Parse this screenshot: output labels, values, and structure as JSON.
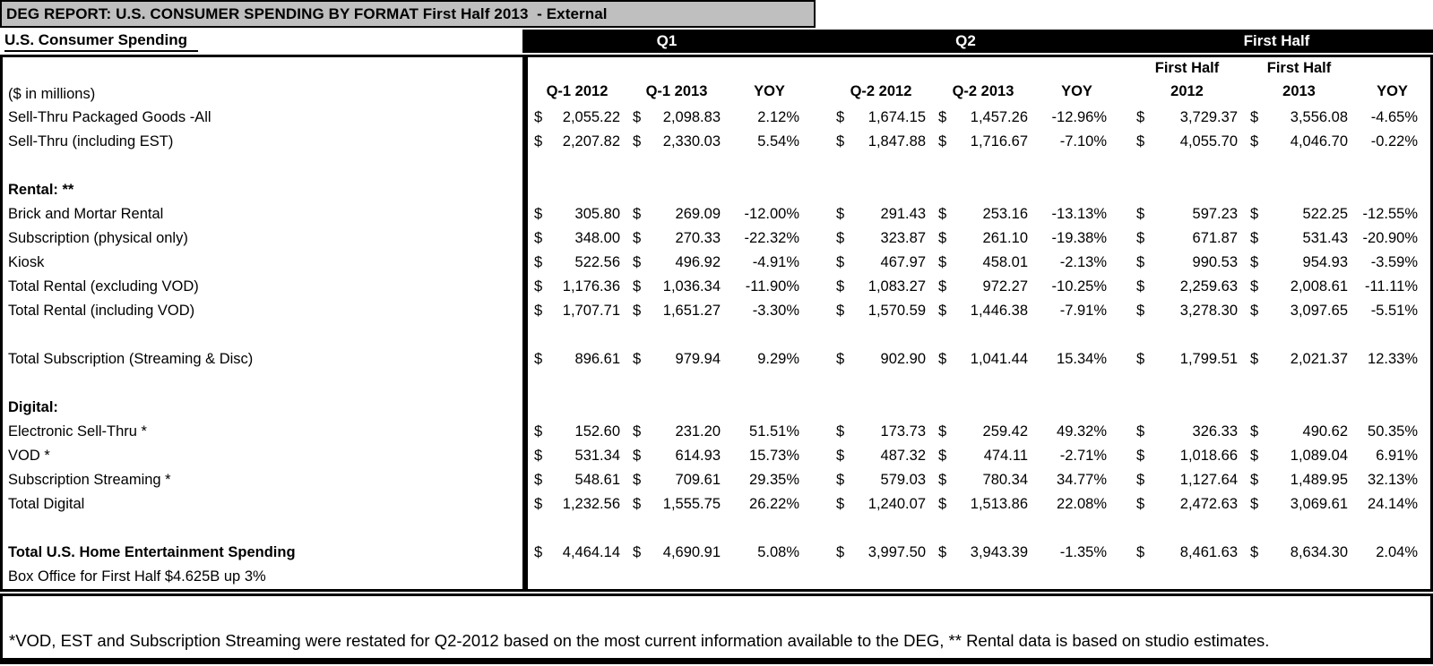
{
  "title_bar": "DEG REPORT: U.S. CONSUMER SPENDING BY FORMAT First Half 2013  - External",
  "colors": {
    "title_bar_bg": "#bfbfbf",
    "header_band_bg": "#000000",
    "text": "#000000"
  },
  "header": {
    "left_label": "U.S. Consumer Spending",
    "groups": [
      "Q1",
      "Q2",
      "First Half"
    ],
    "millions_label": "($ in millions)",
    "columns": [
      {
        "line1": "",
        "line2": "Q-1 2012"
      },
      {
        "line1": "",
        "line2": "Q-1 2013"
      },
      {
        "line1": "",
        "line2": "YOY"
      },
      {
        "line1": "",
        "line2": "Q-2 2012"
      },
      {
        "line1": "",
        "line2": "Q-2 2013"
      },
      {
        "line1": "",
        "line2": "YOY"
      },
      {
        "line1": "First Half",
        "line2": "2012"
      },
      {
        "line1": "First Half",
        "line2": "2013"
      },
      {
        "line1": "",
        "line2": "YOY"
      }
    ]
  },
  "table": {
    "rows": [
      {
        "label": "Sell-Thru Packaged Goods -All",
        "bold": false,
        "values": [
          "$ 2,055.22",
          "$ 2,098.83",
          "2.12%",
          "$ 1,674.15",
          "$ 1,457.26",
          "-12.96%",
          "$ 3,729.37",
          "$ 3,556.08",
          "-4.65%"
        ]
      },
      {
        "label": "Sell-Thru (including EST)",
        "bold": false,
        "values": [
          "$ 2,207.82",
          "$ 2,330.03",
          "5.54%",
          "$ 1,847.88",
          "$ 1,716.67",
          "-7.10%",
          "$ 4,055.70",
          "$ 4,046.70",
          "-0.22%"
        ]
      },
      {
        "label": "",
        "bold": false,
        "values": null
      },
      {
        "label": "Rental: **",
        "bold": true,
        "values": null
      },
      {
        "label": "Brick and Mortar Rental",
        "bold": false,
        "values": [
          "$ 305.80",
          "$ 269.09",
          "-12.00%",
          "$ 291.43",
          "$ 253.16",
          "-13.13%",
          "$ 597.23",
          "$ 522.25",
          "-12.55%"
        ]
      },
      {
        "label": "Subscription (physical only)",
        "bold": false,
        "values": [
          "$ 348.00",
          "$ 270.33",
          "-22.32%",
          "$ 323.87",
          "$ 261.10",
          "-19.38%",
          "$ 671.87",
          "$ 531.43",
          "-20.90%"
        ]
      },
      {
        "label": "Kiosk",
        "bold": false,
        "values": [
          "$ 522.56",
          "$ 496.92",
          "-4.91%",
          "$ 467.97",
          "$ 458.01",
          "-2.13%",
          "$ 990.53",
          "$ 954.93",
          "-3.59%"
        ]
      },
      {
        "label": "Total Rental (excluding VOD)",
        "bold": false,
        "values": [
          "$ 1,176.36",
          "$ 1,036.34",
          "-11.90%",
          "$ 1,083.27",
          "$ 972.27",
          "-10.25%",
          "$ 2,259.63",
          "$ 2,008.61",
          "-11.11%"
        ]
      },
      {
        "label": "Total Rental (including VOD)",
        "bold": false,
        "values": [
          "$ 1,707.71",
          "$ 1,651.27",
          "-3.30%",
          "$ 1,570.59",
          "$ 1,446.38",
          "-7.91%",
          "$ 3,278.30",
          "$ 3,097.65",
          "-5.51%"
        ]
      },
      {
        "label": "",
        "bold": false,
        "values": null
      },
      {
        "label": "Total Subscription (Streaming & Disc)",
        "bold": false,
        "values": [
          "$ 896.61",
          "$ 979.94",
          "9.29%",
          "$ 902.90",
          "$ 1,041.44",
          "15.34%",
          "$ 1,799.51",
          "$ 2,021.37",
          "12.33%"
        ]
      },
      {
        "label": "",
        "bold": false,
        "values": null
      },
      {
        "label": "Digital:",
        "bold": true,
        "values": null
      },
      {
        "label": "Electronic Sell-Thru *",
        "bold": false,
        "values": [
          "$ 152.60",
          "$ 231.20",
          "51.51%",
          "$ 173.73",
          "$ 259.42",
          "49.32%",
          "$ 326.33",
          "$ 490.62",
          "50.35%"
        ]
      },
      {
        "label": "VOD *",
        "bold": false,
        "values": [
          "$ 531.34",
          "$ 614.93",
          "15.73%",
          "$ 487.32",
          "$ 474.11",
          "-2.71%",
          "$ 1,018.66",
          "$ 1,089.04",
          "6.91%"
        ]
      },
      {
        "label": "Subscription Streaming *",
        "bold": false,
        "values": [
          "$ 548.61",
          "$ 709.61",
          "29.35%",
          "$ 579.03",
          "$ 780.34",
          "34.77%",
          "$ 1,127.64",
          "$ 1,489.95",
          "32.13%"
        ]
      },
      {
        "label": "Total Digital",
        "bold": false,
        "values": [
          "$ 1,232.56",
          "$ 1,555.75",
          "26.22%",
          "$ 1,240.07",
          "$ 1,513.86",
          "22.08%",
          "$ 2,472.63",
          "$ 3,069.61",
          "24.14%"
        ]
      },
      {
        "label": "",
        "bold": false,
        "values": null
      },
      {
        "label": "Total U.S. Home Entertainment Spending",
        "bold": true,
        "values": [
          "$ 4,464.14",
          "$ 4,690.91",
          "5.08%",
          "$ 3,997.50",
          "$ 3,943.39",
          "-1.35%",
          "$ 8,461.63",
          "$ 8,634.30",
          "2.04%"
        ]
      },
      {
        "label": "Box Office for First Half $4.625B up 3%",
        "bold": false,
        "values": null
      }
    ]
  },
  "footnote": "*VOD, EST and Subscription Streaming were restated for Q2-2012 based on the most current information available to the DEG, ** Rental data is based on studio estimates."
}
